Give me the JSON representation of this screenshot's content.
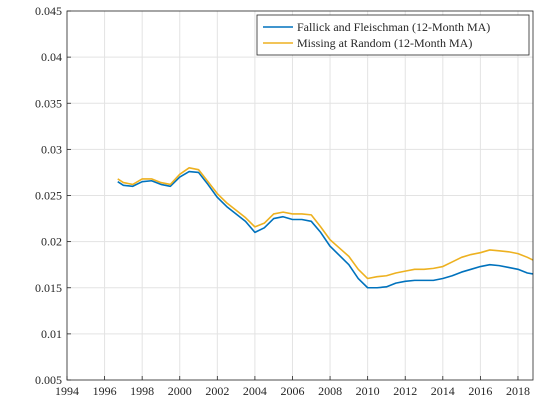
{
  "chart_data": {
    "type": "line",
    "x": [
      1996.7,
      1997,
      1997.5,
      1998,
      1998.5,
      1999,
      1999.5,
      2000,
      2000.5,
      2001,
      2001.5,
      2002,
      2002.5,
      2003,
      2003.5,
      2004,
      2004.5,
      2005,
      2005.5,
      2006,
      2006.5,
      2007,
      2007.5,
      2008,
      2008.5,
      2009,
      2009.5,
      2010,
      2010.5,
      2011,
      2011.5,
      2012,
      2012.5,
      2013,
      2013.5,
      2014,
      2014.5,
      2015,
      2015.5,
      2016,
      2016.5,
      2017,
      2017.5,
      2018,
      2018.5,
      2018.8
    ],
    "series": [
      {
        "name": "Fallick and Fleischman (12-Month MA)",
        "color": "#0072bd",
        "values": [
          0.0265,
          0.0261,
          0.026,
          0.0265,
          0.0266,
          0.0262,
          0.026,
          0.027,
          0.0276,
          0.0275,
          0.0262,
          0.0248,
          0.0238,
          0.023,
          0.0222,
          0.021,
          0.0215,
          0.0225,
          0.0227,
          0.0224,
          0.0224,
          0.0222,
          0.021,
          0.0195,
          0.0185,
          0.0175,
          0.016,
          0.015,
          0.015,
          0.0151,
          0.0155,
          0.0157,
          0.0158,
          0.0158,
          0.0158,
          0.016,
          0.0163,
          0.0167,
          0.017,
          0.0173,
          0.0175,
          0.0174,
          0.0172,
          0.017,
          0.0166,
          0.0165
        ]
      },
      {
        "name": "Missing at Random (12-Month MA)",
        "color": "#edb120",
        "values": [
          0.0268,
          0.0264,
          0.0262,
          0.0268,
          0.0268,
          0.0264,
          0.0262,
          0.0273,
          0.028,
          0.0278,
          0.0265,
          0.0252,
          0.0242,
          0.0234,
          0.0226,
          0.0216,
          0.022,
          0.023,
          0.0232,
          0.023,
          0.023,
          0.0229,
          0.0216,
          0.0202,
          0.0193,
          0.0184,
          0.017,
          0.016,
          0.0162,
          0.0163,
          0.0166,
          0.0168,
          0.017,
          0.017,
          0.0171,
          0.0173,
          0.0178,
          0.0183,
          0.0186,
          0.0188,
          0.0191,
          0.019,
          0.0189,
          0.0187,
          0.0183,
          0.018
        ]
      }
    ],
    "xlim": [
      1994,
      2018.8
    ],
    "xticks": [
      1994,
      1996,
      1998,
      2000,
      2002,
      2004,
      2006,
      2008,
      2010,
      2012,
      2014,
      2016,
      2018
    ],
    "ylim": [
      0.005,
      0.045
    ],
    "yticks": [
      0.005,
      0.01,
      0.015,
      0.02,
      0.025,
      0.03,
      0.035,
      0.04,
      0.045
    ],
    "grid": true,
    "legend": "top-right"
  }
}
